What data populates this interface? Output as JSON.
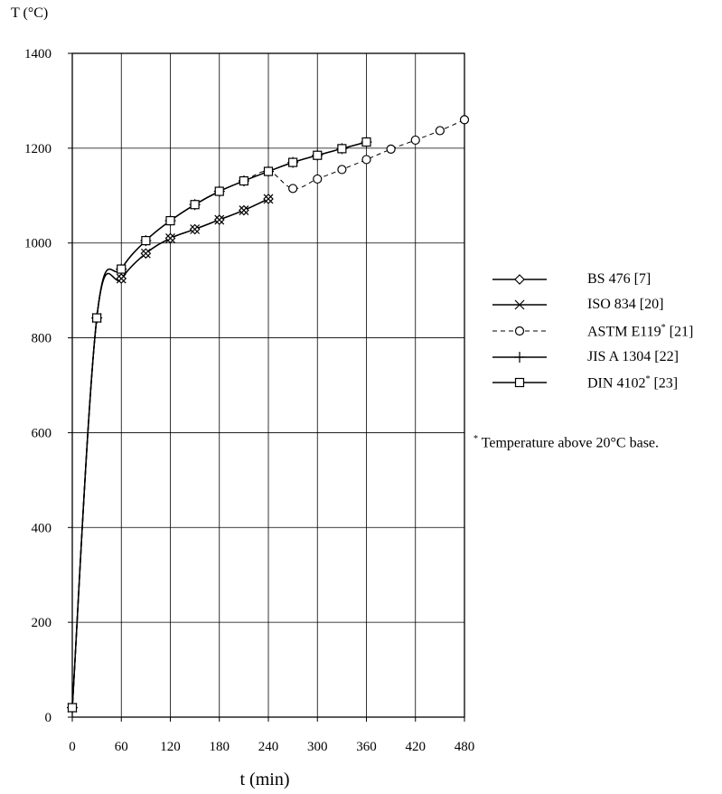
{
  "chart_data": {
    "type": "line",
    "ylabel": "T (°C)",
    "xlabel": "t (min)",
    "xlim": [
      0,
      480
    ],
    "ylim": [
      0,
      1400
    ],
    "xticks": [
      0,
      60,
      120,
      180,
      240,
      300,
      360,
      420,
      480
    ],
    "yticks": [
      0,
      200,
      400,
      600,
      800,
      1000,
      1200,
      1400
    ],
    "grid": true,
    "legend_position": "right",
    "series": [
      {
        "name": "BS 476 [7]",
        "marker": "diamond",
        "dash": "solid",
        "points": [
          [
            0,
            20
          ],
          [
            30,
            842
          ],
          [
            60,
            925
          ],
          [
            90,
            978
          ],
          [
            120,
            1010
          ],
          [
            150,
            1029
          ],
          [
            180,
            1049
          ],
          [
            210,
            1069
          ],
          [
            240,
            1093
          ]
        ]
      },
      {
        "name": "ISO 834 [20]",
        "marker": "x",
        "dash": "solid",
        "points": [
          [
            0,
            20
          ],
          [
            30,
            842
          ],
          [
            60,
            925
          ],
          [
            90,
            978
          ],
          [
            120,
            1010
          ],
          [
            150,
            1029
          ],
          [
            180,
            1049
          ],
          [
            210,
            1069
          ],
          [
            240,
            1093
          ]
        ]
      },
      {
        "name": "ASTM E119",
        "name_sup": "*",
        "name_suffix": " [21]",
        "marker": "circle",
        "dash": "dashed",
        "points": [
          [
            0,
            20
          ],
          [
            30,
            842
          ],
          [
            60,
            945
          ],
          [
            90,
            1005
          ],
          [
            120,
            1047
          ],
          [
            150,
            1081
          ],
          [
            180,
            1109
          ],
          [
            210,
            1131
          ],
          [
            240,
            1151
          ],
          [
            270,
            1115
          ],
          [
            300,
            1135
          ],
          [
            330,
            1155
          ],
          [
            360,
            1176
          ],
          [
            390,
            1198
          ],
          [
            420,
            1217
          ],
          [
            450,
            1237
          ],
          [
            480,
            1260
          ]
        ]
      },
      {
        "name": "JIS A 1304 [22]",
        "marker": "plus",
        "dash": "solid",
        "points": [
          [
            0,
            20
          ],
          [
            30,
            842
          ],
          [
            60,
            945
          ],
          [
            90,
            1005
          ],
          [
            120,
            1047
          ],
          [
            150,
            1081
          ],
          [
            180,
            1109
          ],
          [
            210,
            1131
          ],
          [
            240,
            1151
          ],
          [
            270,
            1170
          ],
          [
            300,
            1185
          ],
          [
            330,
            1199
          ],
          [
            360,
            1213
          ]
        ]
      },
      {
        "name": "DIN 4102",
        "name_sup": "*",
        "name_suffix": " [23]",
        "marker": "square",
        "dash": "solid",
        "points": [
          [
            0,
            20
          ],
          [
            30,
            842
          ],
          [
            60,
            945
          ],
          [
            90,
            1005
          ],
          [
            120,
            1047
          ],
          [
            150,
            1081
          ],
          [
            180,
            1109
          ],
          [
            210,
            1131
          ],
          [
            240,
            1151
          ],
          [
            270,
            1170
          ],
          [
            300,
            1185
          ],
          [
            330,
            1199
          ],
          [
            360,
            1213
          ]
        ]
      }
    ],
    "footnote": {
      "mark": "*",
      "text": " Temperature above 20°C base."
    }
  },
  "colors": {
    "line": "#000000",
    "grid": "#000000",
    "background": "#ffffff"
  }
}
